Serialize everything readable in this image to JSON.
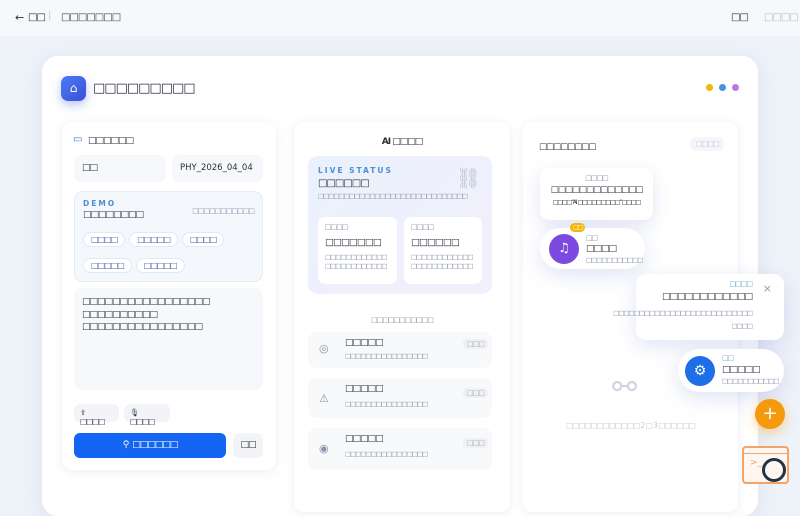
{
  "topbar": {
    "back": "□□",
    "title": "□□□□□□□",
    "right_primary": "□□",
    "right_secondary": "□□□□"
  },
  "page": {
    "title": "□□□□□□□□□",
    "dots": [
      "#f2b705",
      "#4a90e2",
      "#b77ae6"
    ],
    "accent": "#1565f5"
  },
  "left": {
    "header": "□□□□□□",
    "field1": "□□",
    "field2": "PHY_2026_04_04",
    "demo": {
      "tag": "DEMO",
      "title": "□□□□□□□□",
      "meta": "□□□□□□□□□□□",
      "chips": [
        "□□□□",
        "□□□□□",
        "□□□□",
        "□□□□□",
        "□□□□□"
      ]
    },
    "textarea_lines": [
      "□□□□□□□□□□□□□□□□□",
      "□□□□□□□□□□",
      "□□□□□□□□□□□□□□□□"
    ],
    "upload": "□□□□",
    "voice": "□□□□",
    "search": "□□□□□□",
    "secondary": "□□"
  },
  "middle": {
    "title": "AI □□□□",
    "live": {
      "label": "LIVE STATUS",
      "title": "□□□□□□",
      "desc": "□□□□□□□□□□□□□□□□□□□□□□□□□□□□□",
      "cards": [
        {
          "label": "□□□□",
          "title": "□□□□□□□",
          "desc": "□□□□□□□□□□□□□□□□□□□□□□□□"
        },
        {
          "label": "□□□□",
          "title": "□□□□□□",
          "desc": "□□□□□□□□□□□□□□□□□□□□□□□□"
        }
      ]
    },
    "subtitle": "□□□□□□□□□□□",
    "items": [
      {
        "icon": "check-circle-icon",
        "title": "□□□□□",
        "desc": "□□□□□□□□□□□□□□□□",
        "badge": "□□□"
      },
      {
        "icon": "warning-icon",
        "title": "□□□□□",
        "desc": "□□□□□□□□□□□□□□□□",
        "badge": "□□□"
      },
      {
        "icon": "target-icon",
        "title": "□□□□□",
        "desc": "□□□□□□□□□□□□□□□□",
        "badge": "□□□"
      }
    ],
    "tooltip": {
      "label": "□□□□",
      "title": "□□□□□□□□□□□□□",
      "desc": "□□□□“AI □□□□□□□□□”□□□□"
    },
    "music": {
      "badge": "□□",
      "label": "□□",
      "title": "□□□□",
      "desc": "□□□□□□□□□□□"
    }
  },
  "right": {
    "header": "□□□□□□□□",
    "badge": "□□□□",
    "empty": "□□□□□□□□□□□□ 2 □ 3 □□□□□□"
  },
  "notification": {
    "label": "□□□□",
    "title": "□□□□□□□□□□□□",
    "desc": "□□□□□□□□□□□□□□□□□□□□□□□□□□□",
    "desc2": "□□□□"
  },
  "settings_pill": {
    "label": "□□",
    "title": "□□□□□",
    "desc": "□□□□□□□□□□□"
  },
  "fab": {
    "color": "#f59a0c"
  }
}
